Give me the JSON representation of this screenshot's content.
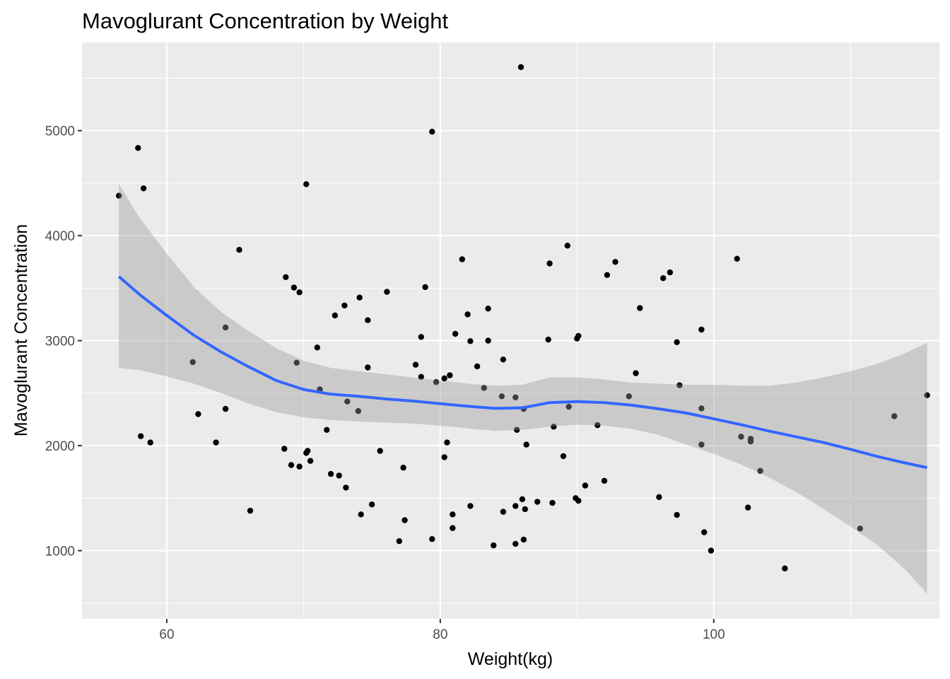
{
  "chart_data": {
    "type": "scatter",
    "title": "Mavoglurant Concentration by Weight",
    "xlabel": "Weight(kg)",
    "ylabel": "Mavoglurant Concentration",
    "xlim": [
      53.8,
      116.5
    ],
    "ylim": [
      350,
      5840
    ],
    "x_ticks": [
      60,
      80,
      100
    ],
    "x_tick_labels": [
      "60",
      "80",
      "100"
    ],
    "y_ticks": [
      1000,
      2000,
      3000,
      4000,
      5000
    ],
    "y_tick_labels": [
      "1000",
      "2000",
      "3000",
      "4000",
      "5000"
    ],
    "grid": true,
    "legend": "none",
    "colors": {
      "panel": "#ebebeb",
      "grid": "#ffffff",
      "points": "#000000",
      "smooth_line": "#3366ff",
      "confidence_band": "#999999"
    },
    "points": [
      {
        "x": 56.5,
        "y": 4380
      },
      {
        "x": 57.9,
        "y": 4835
      },
      {
        "x": 58.3,
        "y": 4450
      },
      {
        "x": 58.1,
        "y": 2090
      },
      {
        "x": 58.8,
        "y": 2030
      },
      {
        "x": 61.9,
        "y": 2795
      },
      {
        "x": 62.3,
        "y": 2300
      },
      {
        "x": 63.6,
        "y": 2030
      },
      {
        "x": 64.3,
        "y": 2350
      },
      {
        "x": 64.3,
        "y": 3125
      },
      {
        "x": 65.3,
        "y": 3865
      },
      {
        "x": 66.1,
        "y": 1380
      },
      {
        "x": 68.6,
        "y": 1970
      },
      {
        "x": 68.7,
        "y": 3605
      },
      {
        "x": 69.1,
        "y": 1815
      },
      {
        "x": 69.3,
        "y": 3505
      },
      {
        "x": 69.5,
        "y": 2790
      },
      {
        "x": 69.7,
        "y": 1800
      },
      {
        "x": 69.7,
        "y": 3460
      },
      {
        "x": 70.2,
        "y": 4490
      },
      {
        "x": 70.2,
        "y": 1930
      },
      {
        "x": 70.3,
        "y": 1950
      },
      {
        "x": 70.5,
        "y": 1855
      },
      {
        "x": 71.0,
        "y": 2935
      },
      {
        "x": 71.2,
        "y": 2535
      },
      {
        "x": 71.7,
        "y": 2150
      },
      {
        "x": 72.0,
        "y": 1730
      },
      {
        "x": 72.3,
        "y": 3240
      },
      {
        "x": 72.6,
        "y": 1715
      },
      {
        "x": 73.0,
        "y": 3335
      },
      {
        "x": 73.1,
        "y": 1600
      },
      {
        "x": 73.2,
        "y": 2420
      },
      {
        "x": 74.0,
        "y": 2330
      },
      {
        "x": 74.1,
        "y": 3410
      },
      {
        "x": 74.2,
        "y": 1345
      },
      {
        "x": 74.7,
        "y": 3195
      },
      {
        "x": 74.7,
        "y": 2745
      },
      {
        "x": 75.0,
        "y": 1440
      },
      {
        "x": 75.6,
        "y": 1950
      },
      {
        "x": 76.1,
        "y": 3465
      },
      {
        "x": 77.0,
        "y": 1090
      },
      {
        "x": 77.3,
        "y": 1790
      },
      {
        "x": 77.4,
        "y": 1290
      },
      {
        "x": 78.2,
        "y": 2770
      },
      {
        "x": 78.6,
        "y": 3035
      },
      {
        "x": 78.6,
        "y": 2655
      },
      {
        "x": 78.9,
        "y": 3510
      },
      {
        "x": 79.4,
        "y": 4990
      },
      {
        "x": 79.4,
        "y": 1110
      },
      {
        "x": 79.7,
        "y": 2605
      },
      {
        "x": 80.3,
        "y": 2640
      },
      {
        "x": 80.3,
        "y": 1890
      },
      {
        "x": 80.5,
        "y": 2030
      },
      {
        "x": 80.7,
        "y": 2670
      },
      {
        "x": 80.9,
        "y": 1215
      },
      {
        "x": 80.9,
        "y": 1345
      },
      {
        "x": 81.1,
        "y": 3065
      },
      {
        "x": 81.6,
        "y": 3775
      },
      {
        "x": 82.0,
        "y": 3250
      },
      {
        "x": 82.2,
        "y": 1425
      },
      {
        "x": 82.2,
        "y": 2995
      },
      {
        "x": 82.7,
        "y": 2755
      },
      {
        "x": 83.2,
        "y": 2550
      },
      {
        "x": 83.5,
        "y": 3000
      },
      {
        "x": 83.5,
        "y": 3305
      },
      {
        "x": 83.9,
        "y": 1050
      },
      {
        "x": 84.5,
        "y": 2470
      },
      {
        "x": 84.6,
        "y": 2820
      },
      {
        "x": 84.6,
        "y": 1370
      },
      {
        "x": 85.5,
        "y": 2460
      },
      {
        "x": 85.5,
        "y": 1425
      },
      {
        "x": 85.6,
        "y": 2150
      },
      {
        "x": 85.5,
        "y": 1065
      },
      {
        "x": 85.9,
        "y": 5605
      },
      {
        "x": 86.0,
        "y": 1490
      },
      {
        "x": 86.1,
        "y": 2350
      },
      {
        "x": 86.1,
        "y": 1105
      },
      {
        "x": 86.2,
        "y": 1395
      },
      {
        "x": 86.3,
        "y": 2010
      },
      {
        "x": 87.1,
        "y": 1465
      },
      {
        "x": 87.9,
        "y": 3010
      },
      {
        "x": 88.0,
        "y": 3735
      },
      {
        "x": 88.2,
        "y": 1455
      },
      {
        "x": 88.3,
        "y": 2180
      },
      {
        "x": 89.0,
        "y": 1900
      },
      {
        "x": 89.3,
        "y": 3905
      },
      {
        "x": 89.4,
        "y": 2370
      },
      {
        "x": 89.9,
        "y": 1500
      },
      {
        "x": 90.0,
        "y": 3020
      },
      {
        "x": 90.1,
        "y": 1475
      },
      {
        "x": 90.1,
        "y": 3045
      },
      {
        "x": 90.6,
        "y": 1620
      },
      {
        "x": 91.5,
        "y": 2195
      },
      {
        "x": 92.0,
        "y": 1665
      },
      {
        "x": 92.2,
        "y": 3625
      },
      {
        "x": 92.8,
        "y": 3750
      },
      {
        "x": 93.8,
        "y": 2470
      },
      {
        "x": 94.3,
        "y": 2690
      },
      {
        "x": 94.6,
        "y": 3310
      },
      {
        "x": 96.0,
        "y": 1510
      },
      {
        "x": 96.3,
        "y": 3595
      },
      {
        "x": 96.8,
        "y": 3650
      },
      {
        "x": 97.3,
        "y": 2985
      },
      {
        "x": 97.3,
        "y": 1340
      },
      {
        "x": 97.5,
        "y": 2575
      },
      {
        "x": 99.1,
        "y": 3105
      },
      {
        "x": 99.1,
        "y": 2355
      },
      {
        "x": 99.1,
        "y": 2010
      },
      {
        "x": 99.3,
        "y": 1175
      },
      {
        "x": 99.8,
        "y": 1000
      },
      {
        "x": 101.7,
        "y": 3780
      },
      {
        "x": 102.0,
        "y": 2085
      },
      {
        "x": 102.5,
        "y": 1410
      },
      {
        "x": 102.7,
        "y": 2065
      },
      {
        "x": 102.7,
        "y": 2040
      },
      {
        "x": 103.4,
        "y": 1760
      },
      {
        "x": 105.2,
        "y": 830
      },
      {
        "x": 110.7,
        "y": 1210
      },
      {
        "x": 113.2,
        "y": 2280
      },
      {
        "x": 115.6,
        "y": 2480
      }
    ],
    "smooth": {
      "x": [
        56.5,
        58,
        60,
        62,
        64,
        66,
        68,
        70,
        72,
        74,
        76,
        78,
        80,
        82,
        84,
        86,
        88,
        90,
        92,
        94,
        96,
        98,
        100,
        102,
        104,
        106,
        108,
        110,
        112,
        114,
        115.6
      ],
      "y": [
        3610,
        3440,
        3240,
        3050,
        2890,
        2750,
        2620,
        2535,
        2490,
        2470,
        2445,
        2425,
        2400,
        2375,
        2355,
        2360,
        2410,
        2420,
        2410,
        2385,
        2350,
        2310,
        2255,
        2200,
        2140,
        2085,
        2030,
        1965,
        1895,
        1835,
        1790
      ],
      "lo": [
        2740,
        2720,
        2660,
        2590,
        2500,
        2400,
        2320,
        2270,
        2245,
        2230,
        2220,
        2210,
        2190,
        2165,
        2140,
        2150,
        2180,
        2200,
        2190,
        2160,
        2100,
        2010,
        1920,
        1820,
        1700,
        1560,
        1400,
        1230,
        1050,
        820,
        590
      ],
      "hi": [
        4490,
        4170,
        3830,
        3510,
        3270,
        3090,
        2930,
        2810,
        2740,
        2710,
        2680,
        2650,
        2620,
        2590,
        2570,
        2580,
        2650,
        2650,
        2630,
        2600,
        2590,
        2580,
        2580,
        2570,
        2570,
        2600,
        2650,
        2710,
        2780,
        2880,
        2980
      ]
    }
  }
}
